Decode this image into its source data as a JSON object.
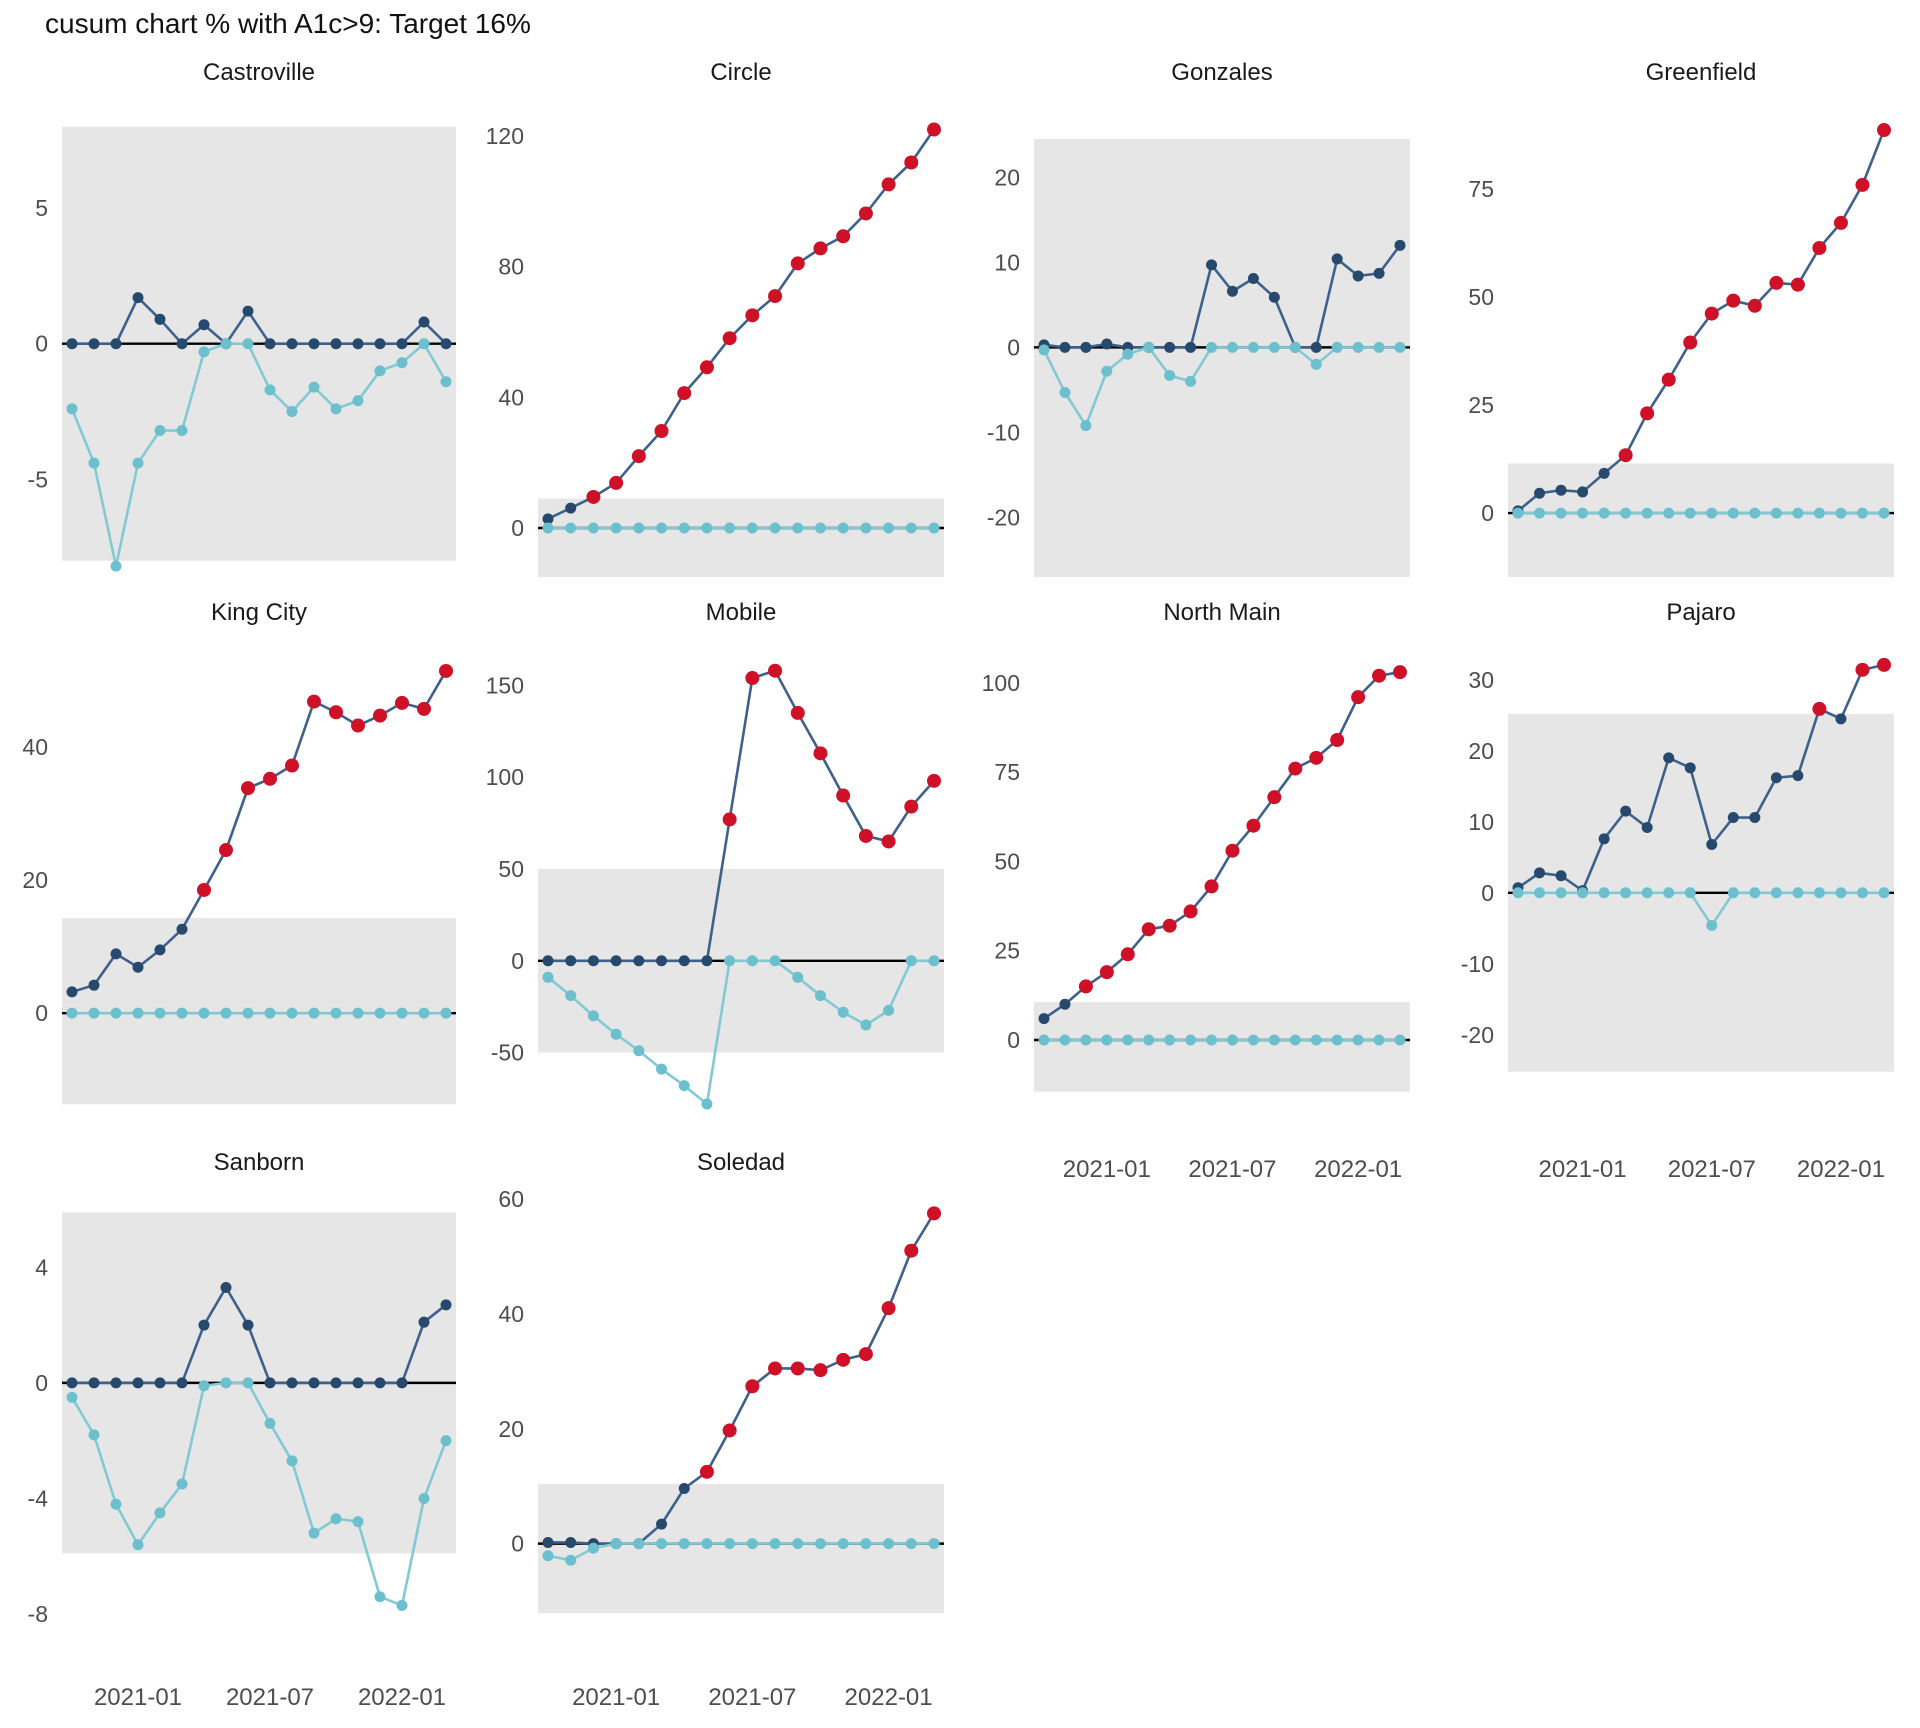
{
  "title": "cusum chart % with A1c>9: Target 16%",
  "colors": {
    "upper_line": "#3d618c",
    "upper_point": "#27496d",
    "signal_point": "#ce1126",
    "lower_line": "#82c9d4",
    "lower_point": "#6cc0ce",
    "band": "#e6e6e6",
    "center_line": "#000000",
    "tick_label": "#4d4d4d",
    "facet_title": "#1a1a1a"
  },
  "chart_data": {
    "type": "line",
    "subtype": "faceted-cusum-control-chart",
    "title": "cusum chart % with A1c>9: Target 16%",
    "grid": "4 columns x 3 rows, shared monthly x axis",
    "x": {
      "unit": "month",
      "n_points": 18,
      "start": "2020-10",
      "end": "2022-03",
      "tick_labels": [
        "2021-01",
        "2021-07",
        "2022-01"
      ],
      "tick_point_indices": [
        3,
        9,
        15
      ]
    },
    "legend": {
      "upper": "cumulative sum above target (dark navy, red point = beyond control band)",
      "lower": "cumulative sum below target (light blue)",
      "band": "gray shaded control band",
      "center": "black center line at 0"
    },
    "facets": [
      {
        "name": "Castroville",
        "row": 0,
        "col": 0,
        "ylim": [
          -8.6,
          8.8
        ],
        "yticks": [
          5,
          0,
          -5
        ],
        "band": [
          -8,
          8
        ],
        "show_x_labels": false,
        "upper": [
          0,
          0,
          0,
          1.7,
          0.9,
          0,
          0.7,
          0,
          1.2,
          0,
          0,
          0,
          0,
          0,
          0,
          0,
          0.8,
          0
        ],
        "lower": [
          -2.4,
          -4.4,
          -8.2,
          -4.4,
          -3.2,
          -3.2,
          -0.3,
          0,
          0,
          -1.7,
          -2.5,
          -1.6,
          -2.4,
          -2.1,
          -1.0,
          -0.7,
          0,
          -1.4
        ],
        "red_indices": []
      },
      {
        "name": "Circle",
        "row": 0,
        "col": 1,
        "ylim": [
          -15,
          129.5
        ],
        "yticks": [
          120,
          80,
          40,
          0
        ],
        "band": [
          -15,
          9
        ],
        "show_x_labels": false,
        "upper": [
          2.8,
          6.1,
          9.5,
          13.8,
          22,
          29.7,
          41.3,
          49.2,
          58.1,
          65.1,
          71,
          81,
          85.6,
          89.3,
          96.3,
          105.2,
          111.9,
          122
        ],
        "lower": [
          0,
          0,
          0,
          0,
          0,
          0,
          0,
          0,
          0,
          0,
          0,
          0,
          0,
          0,
          0,
          0,
          0,
          0
        ],
        "red_indices": [
          2,
          3,
          4,
          5,
          6,
          7,
          8,
          9,
          10,
          11,
          12,
          13,
          14,
          15,
          16,
          17
        ]
      },
      {
        "name": "Gonzales",
        "row": 0,
        "col": 2,
        "ylim": [
          -27,
          28.5
        ],
        "yticks": [
          20,
          10,
          0,
          -10,
          -20
        ],
        "band": [
          -27,
          24.5
        ],
        "show_x_labels": false,
        "upper": [
          0.3,
          0,
          0,
          0.4,
          0,
          0,
          0,
          0,
          9.7,
          6.6,
          8.1,
          5.9,
          0,
          0,
          10.4,
          8.4,
          8.7,
          12
        ],
        "lower": [
          -0.3,
          -5.3,
          -9.2,
          -2.8,
          -0.8,
          0,
          -3.3,
          -4,
          0,
          0,
          0,
          0,
          0,
          -2,
          0,
          0,
          0,
          0
        ],
        "red_indices": []
      },
      {
        "name": "Greenfield",
        "row": 0,
        "col": 3,
        "ylim": [
          -14.8,
          94.5
        ],
        "yticks": [
          75,
          50,
          25,
          0
        ],
        "band": [
          -14.8,
          11.5
        ],
        "show_x_labels": false,
        "upper": [
          0.5,
          4.6,
          5.3,
          4.9,
          9.2,
          13.4,
          23.1,
          30.9,
          39.5,
          46.2,
          49.2,
          48,
          53.3,
          52.9,
          61.4,
          67.2,
          76,
          88.7
        ],
        "lower": [
          0,
          0,
          0,
          0,
          0,
          0,
          0,
          0,
          0,
          0,
          0,
          0,
          0,
          0,
          0,
          0,
          0,
          0
        ],
        "red_indices": [
          5,
          6,
          7,
          8,
          9,
          10,
          11,
          12,
          13,
          14,
          15,
          16,
          17
        ]
      },
      {
        "name": "King City",
        "row": 1,
        "col": 0,
        "ylim": [
          -15.3,
          55.3
        ],
        "yticks": [
          40,
          20,
          0
        ],
        "band": [
          -13.7,
          14.3
        ],
        "show_x_labels": false,
        "upper": [
          3.2,
          4.2,
          8.9,
          6.9,
          9.5,
          12.6,
          18.5,
          24.5,
          33.8,
          35.2,
          37.2,
          46.8,
          45.2,
          43.2,
          44.7,
          46.6,
          45.7,
          51.4
        ],
        "lower": [
          0,
          0,
          0,
          0,
          0,
          0,
          0,
          0,
          0,
          0,
          0,
          0,
          0,
          0,
          0,
          0,
          0,
          0
        ],
        "red_indices": [
          6,
          7,
          8,
          9,
          10,
          11,
          12,
          13,
          14,
          15,
          16,
          17
        ]
      },
      {
        "name": "Mobile",
        "row": 1,
        "col": 1,
        "ylim": [
          -84,
          172
        ],
        "yticks": [
          150,
          100,
          50,
          0,
          -50
        ],
        "band": [
          -50,
          50
        ],
        "show_x_labels": false,
        "upper": [
          0,
          0,
          0,
          0,
          0,
          0,
          0,
          0,
          77,
          154,
          158,
          135,
          113,
          90,
          68,
          65,
          84,
          98
        ],
        "lower": [
          -9,
          -19,
          -30,
          -40,
          -49,
          -59,
          -68,
          -78,
          0,
          0,
          0,
          -9,
          -19,
          -28,
          -35,
          -27,
          0,
          0
        ],
        "red_indices": [
          8,
          9,
          10,
          11,
          12,
          13,
          14,
          15,
          16,
          17
        ]
      },
      {
        "name": "North Main",
        "row": 1,
        "col": 2,
        "ylim": [
          -21,
          110.6
        ],
        "yticks": [
          100,
          75,
          50,
          25,
          0
        ],
        "band": [
          -14.5,
          10.6
        ],
        "show_x_labels": true,
        "upper": [
          6,
          10,
          15,
          19,
          24,
          31,
          32,
          36,
          43,
          53,
          60,
          68,
          76,
          79,
          84,
          96,
          102,
          103
        ],
        "lower": [
          0,
          0,
          0,
          0,
          0,
          0,
          0,
          0,
          0,
          0,
          0,
          0,
          0,
          0,
          0,
          0,
          0,
          0
        ],
        "red_indices": [
          2,
          3,
          4,
          5,
          6,
          7,
          8,
          9,
          10,
          11,
          12,
          13,
          14,
          15,
          16,
          17
        ]
      },
      {
        "name": "Pajaro",
        "row": 1,
        "col": 3,
        "ylim": [
          -31.3,
          34.9
        ],
        "yticks": [
          30,
          20,
          10,
          0,
          -10,
          -20
        ],
        "band": [
          -25.2,
          25.2
        ],
        "show_x_labels": true,
        "upper": [
          0.7,
          2.8,
          2.4,
          0.3,
          7.6,
          11.5,
          9.2,
          19,
          17.6,
          6.8,
          10.6,
          10.6,
          16.2,
          16.5,
          25.9,
          24.5,
          31.4,
          32.1
        ],
        "lower": [
          0,
          0,
          0,
          0,
          0,
          0,
          0,
          0,
          0,
          -4.6,
          0,
          0,
          0,
          0,
          0,
          0,
          0,
          0
        ],
        "red_indices": [
          14,
          16,
          17
        ]
      },
      {
        "name": "Sanborn",
        "row": 2,
        "col": 0,
        "ylim": [
          -9,
          6.5
        ],
        "yticks": [
          4,
          0,
          -4,
          -8
        ],
        "band": [
          -5.9,
          5.9
        ],
        "show_x_labels": true,
        "upper": [
          0,
          0,
          0,
          0,
          0,
          0,
          2,
          3.3,
          2,
          0,
          0,
          0,
          0,
          0,
          0,
          0,
          2.1,
          2.7
        ],
        "lower": [
          -0.5,
          -1.8,
          -4.2,
          -5.6,
          -4.5,
          -3.5,
          -0.1,
          0,
          0,
          -1.4,
          -2.7,
          -5.2,
          -4.7,
          -4.8,
          -7.4,
          -7.7,
          -4,
          -2
        ],
        "red_indices": []
      },
      {
        "name": "Soledad",
        "row": 2,
        "col": 1,
        "ylim": [
          -17.3,
          60.7
        ],
        "yticks": [
          60,
          40,
          20,
          0
        ],
        "band": [
          -12.1,
          10.4
        ],
        "show_x_labels": true,
        "upper": [
          0.2,
          0.2,
          0,
          0,
          0,
          3.4,
          9.6,
          12.5,
          19.7,
          27.4,
          30.5,
          30.5,
          30.2,
          32,
          33,
          41,
          51,
          57.5
        ],
        "lower": [
          -2.1,
          -2.9,
          -0.8,
          0,
          0,
          0,
          0,
          0,
          0,
          0,
          0,
          0,
          0,
          0,
          0,
          0,
          0,
          0
        ],
        "red_indices": [
          7,
          8,
          9,
          10,
          11,
          12,
          13,
          14,
          15,
          16,
          17
        ]
      }
    ]
  }
}
